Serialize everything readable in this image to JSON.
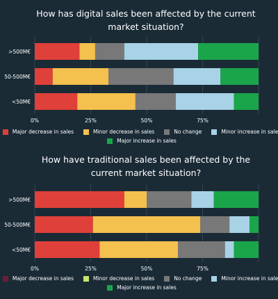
{
  "chart_data": [
    {
      "type": "bar",
      "orientation": "horizontal",
      "stacked": true,
      "title": "How has digital sales been affected by the current market situation?",
      "categories": [
        ">500M€",
        "50-500M€",
        "<50M€"
      ],
      "xticks": [
        "0%",
        "25%",
        "50%",
        "75%"
      ],
      "xlim": [
        0,
        100
      ],
      "grid": true,
      "legend_position": "bottom",
      "series": [
        {
          "name": "Major decrease in sales",
          "color": "#e0403a",
          "values": [
            20,
            8,
            19
          ]
        },
        {
          "name": "Minor decrease in sales",
          "color": "#f4c04e",
          "values": [
            7,
            25,
            26
          ]
        },
        {
          "name": "No change",
          "color": "#787878",
          "values": [
            13,
            29,
            18
          ]
        },
        {
          "name": "Minor increase in sales",
          "color": "#a8d2e6",
          "values": [
            33,
            21,
            26
          ]
        },
        {
          "name": "Major increase in sales",
          "color": "#1aa54a",
          "values": [
            27,
            17,
            11
          ]
        }
      ]
    },
    {
      "type": "bar",
      "orientation": "horizontal",
      "stacked": true,
      "title": "How have traditional sales been affected by the current market situation?",
      "categories": [
        ">500M€",
        "50-500M€",
        "<50M€"
      ],
      "xticks": [
        "0%",
        "25%",
        "50%",
        "75%"
      ],
      "xlim": [
        0,
        100
      ],
      "grid": true,
      "legend_position": "bottom",
      "series": [
        {
          "name": "Major decrease in sales",
          "color": "#e0403a",
          "values": [
            40,
            26,
            29
          ]
        },
        {
          "name": "Minor decrease in sales",
          "color": "#f4c04e",
          "values": [
            10,
            48,
            35
          ]
        },
        {
          "name": "No change",
          "color": "#787878",
          "values": [
            20,
            13,
            21
          ]
        },
        {
          "name": "Minor increase in sales",
          "color": "#a8d2e6",
          "values": [
            10,
            9,
            4
          ]
        },
        {
          "name": "Major increase in sales",
          "color": "#1aa54a",
          "values": [
            20,
            4,
            11
          ]
        }
      ],
      "legend_swatch_colors": [
        "#6a1e35",
        "#c8e66e",
        "#787878",
        "#a8d2e6",
        "#1aa54a"
      ]
    }
  ]
}
